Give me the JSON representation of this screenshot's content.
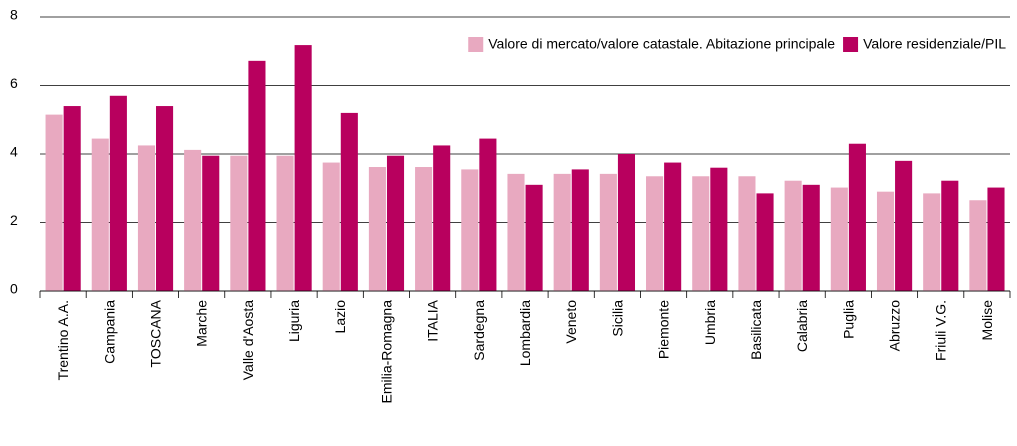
{
  "chart_data": {
    "type": "bar",
    "categories": [
      "Trentino A.A.",
      "Campania",
      "TOSCANA",
      "Marche",
      "Valle d'Aosta",
      "Liguria",
      "Lazio",
      "Emilia-Romagna",
      "ITALIA",
      "Sardegna",
      "Lombardia",
      "Veneto",
      "Sicilia",
      "Piemonte",
      "Umbria",
      "Basilicata",
      "Calabria",
      "Puglia",
      "Abruzzo",
      "Friuli V.G.",
      "Molise"
    ],
    "series": [
      {
        "name": "Valore di mercato/valore catastale. Abitazione principale",
        "color": "#e8a9c0",
        "values": [
          5.15,
          4.45,
          4.25,
          4.12,
          3.95,
          3.95,
          3.75,
          3.62,
          3.62,
          3.55,
          3.42,
          3.42,
          3.42,
          3.35,
          3.35,
          3.35,
          3.22,
          3.02,
          2.9,
          2.85,
          2.65
        ]
      },
      {
        "name": "Valore residenziale/PIL",
        "color": "#b8005e",
        "values": [
          5.4,
          5.7,
          5.4,
          3.95,
          6.72,
          7.18,
          5.2,
          3.95,
          4.25,
          4.45,
          3.1,
          3.55,
          4.0,
          3.75,
          3.6,
          2.85,
          3.1,
          4.3,
          3.8,
          3.22,
          3.02
        ]
      }
    ],
    "ylim": [
      0,
      8
    ],
    "yticks": [
      0,
      2,
      4,
      6,
      8
    ],
    "grid": true,
    "legend": "upper right"
  }
}
